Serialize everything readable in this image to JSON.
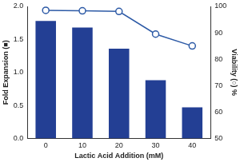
{
  "chart_data": {
    "type": "bar",
    "x_label": "Lactic Acid Addition (mM)",
    "y_label": "Fold Expansion (■)",
    "y2_label": "Viability (○) %",
    "categories": [
      "0",
      "10",
      "20",
      "30",
      "40"
    ],
    "series": [
      {
        "type": "bar",
        "color": "#233f94",
        "values": [
          1.78,
          1.68,
          1.36,
          0.88,
          0.47
        ]
      },
      {
        "type": "line",
        "axis": "y2",
        "marker": "circle",
        "line_style": "solid",
        "color": "#2d5aa6",
        "values": [
          98.5,
          98.3,
          98.1,
          89.5,
          85
        ]
      }
    ],
    "ylim": [
      0,
      2
    ],
    "yticks": [
      {
        "value": 0,
        "label": "0.0"
      },
      {
        "value": 0.5,
        "label": "0.5"
      },
      {
        "value": 1,
        "label": "1.0"
      },
      {
        "value": 1.5,
        "label": "1.5"
      },
      {
        "value": 2,
        "label": "2.0"
      }
    ],
    "y2lim": [
      50,
      100
    ],
    "y2ticks": [
      50,
      60,
      70,
      80,
      90,
      100
    ],
    "grid": false
  }
}
